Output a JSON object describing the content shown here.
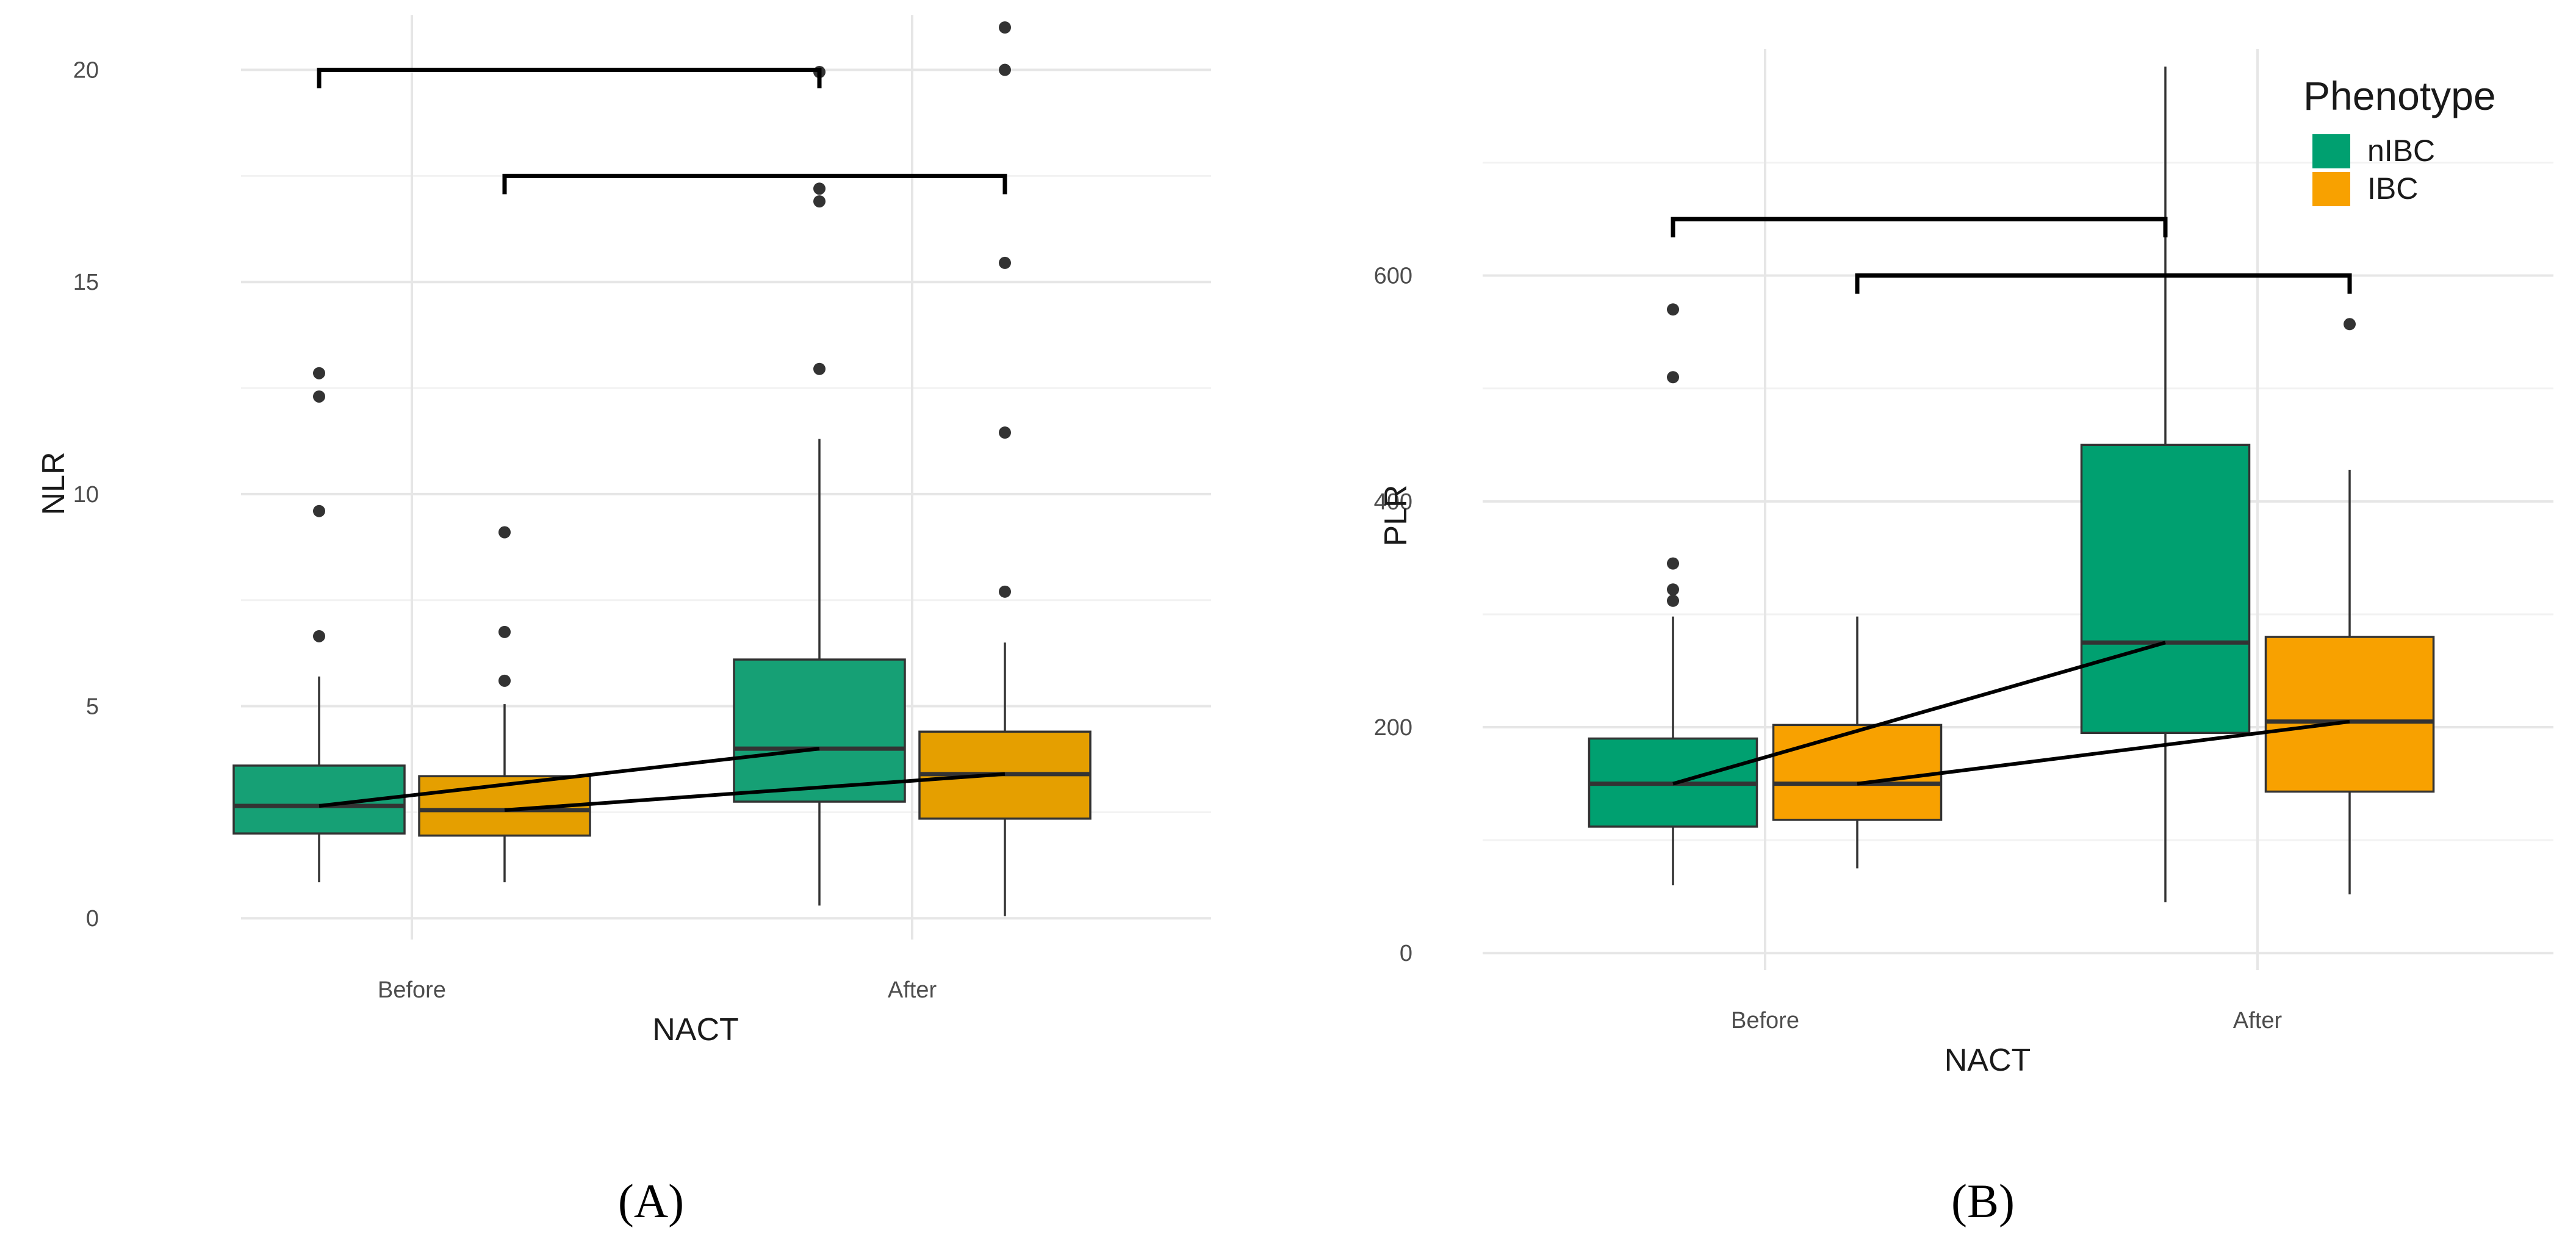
{
  "chart_data": [
    {
      "type": "boxplot",
      "panel": "A",
      "xlabel": "NACT",
      "ylabel": "NLR",
      "categories": [
        "Before",
        "After"
      ],
      "ylim": [
        -0.5,
        21
      ],
      "y_ticks": [
        0,
        5,
        10,
        15,
        20
      ],
      "grid": true,
      "series": [
        {
          "name": "nIBC",
          "color": "#16a075",
          "boxes": [
            {
              "category": "Before",
              "whisker_low": 0.85,
              "q1": 2.0,
              "median": 2.65,
              "q3": 3.6,
              "whisker_high": 5.7,
              "outliers": [
                6.65,
                9.6,
                12.3,
                12.85
              ]
            },
            {
              "category": "After",
              "whisker_low": 0.3,
              "q1": 2.75,
              "median": 4.0,
              "q3": 6.1,
              "whisker_high": 11.3,
              "outliers": [
                12.95,
                16.9,
                17.2,
                19.95
              ]
            }
          ]
        },
        {
          "name": "IBC",
          "color": "#e59f00",
          "boxes": [
            {
              "category": "Before",
              "whisker_low": 0.85,
              "q1": 1.95,
              "median": 2.55,
              "q3": 3.35,
              "whisker_high": 5.05,
              "outliers": [
                5.6,
                6.75,
                9.1
              ]
            },
            {
              "category": "After",
              "whisker_low": 0.05,
              "q1": 2.35,
              "median": 3.4,
              "q3": 4.4,
              "whisker_high": 6.5,
              "outliers": [
                7.7,
                11.45,
                15.45,
                20.0,
                21.0
              ]
            }
          ]
        }
      ],
      "significance_brackets": [
        {
          "from": "nIBC Before",
          "to": "nIBC After",
          "y": 20.0
        },
        {
          "from": "IBC Before",
          "to": "IBC After",
          "y": 17.5
        }
      ]
    },
    {
      "type": "boxplot",
      "panel": "B",
      "xlabel": "NACT",
      "ylabel": "PLR",
      "categories": [
        "Before",
        "After"
      ],
      "ylim": [
        -15,
        790
      ],
      "y_ticks": [
        0,
        200,
        400,
        600
      ],
      "grid": true,
      "legend": {
        "title": "Phenotype",
        "position": "top-right",
        "entries": [
          "nIBC",
          "IBC"
        ]
      },
      "series": [
        {
          "name": "nIBC",
          "color": "#00a070",
          "boxes": [
            {
              "category": "Before",
              "whisker_low": 60,
              "q1": 112,
              "median": 150,
              "q3": 190,
              "whisker_high": 298,
              "outliers": [
                312,
                322,
                345,
                510,
                570
              ]
            },
            {
              "category": "After",
              "whisker_low": 45,
              "q1": 195,
              "median": 275,
              "q3": 450,
              "whisker_high": 785,
              "outliers": []
            }
          ]
        },
        {
          "name": "IBC",
          "color": "#f8a100",
          "boxes": [
            {
              "category": "Before",
              "whisker_low": 75,
              "q1": 118,
              "median": 150,
              "q3": 202,
              "whisker_high": 298,
              "outliers": []
            },
            {
              "category": "After",
              "whisker_low": 52,
              "q1": 143,
              "median": 205,
              "q3": 280,
              "whisker_high": 428,
              "outliers": [
                557
              ]
            }
          ]
        }
      ],
      "significance_brackets": [
        {
          "from": "nIBC Before",
          "to": "nIBC After",
          "y": 650
        },
        {
          "from": "IBC Before",
          "to": "IBC After",
          "y": 600
        }
      ]
    }
  ],
  "panel_labels": [
    "(A)",
    "(B)"
  ]
}
